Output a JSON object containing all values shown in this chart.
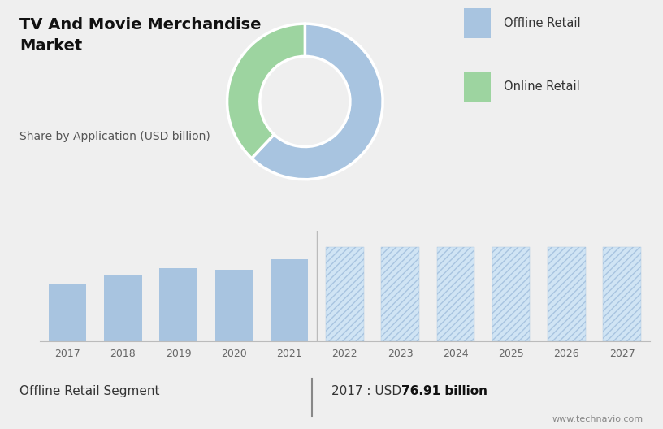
{
  "title": "TV And Movie Merchandise\nMarket",
  "subtitle": "Share by Application (USD billion)",
  "pie_values": [
    62,
    38
  ],
  "pie_colors": [
    "#a8c4e0",
    "#9dd4a0"
  ],
  "legend_colors": [
    "#a8c4e0",
    "#9dd4a0"
  ],
  "legend_labels": [
    "Offline Retail",
    "Online Retail"
  ],
  "bar_years_solid": [
    2017,
    2018,
    2019,
    2020,
    2021
  ],
  "bar_years_hatched": [
    2022,
    2023,
    2024,
    2025,
    2026,
    2027
  ],
  "bar_values_solid": [
    0.52,
    0.6,
    0.66,
    0.65,
    0.74
  ],
  "bar_values_hatched": [
    0.85,
    0.85,
    0.85,
    0.85,
    0.85,
    0.85
  ],
  "bar_color_solid": "#a8c4e0",
  "bar_color_hatched": "#d0e4f4",
  "hatch_pattern": "////",
  "hatch_linecolor": "#a8c4e0",
  "bg_color_top": "#dcdcdc",
  "bg_color_bottom": "#efefef",
  "separator_color": "#cccccc",
  "footer_left": "Offline Retail Segment",
  "footer_value": "2017 : USD ",
  "footer_bold": "76.91 billion",
  "footer_url": "www.technavio.com",
  "divider_color": "#888888",
  "grid_color": "#cccccc",
  "title_fontsize": 14,
  "subtitle_fontsize": 10,
  "axis_label_fontsize": 9,
  "footer_fontsize": 11
}
